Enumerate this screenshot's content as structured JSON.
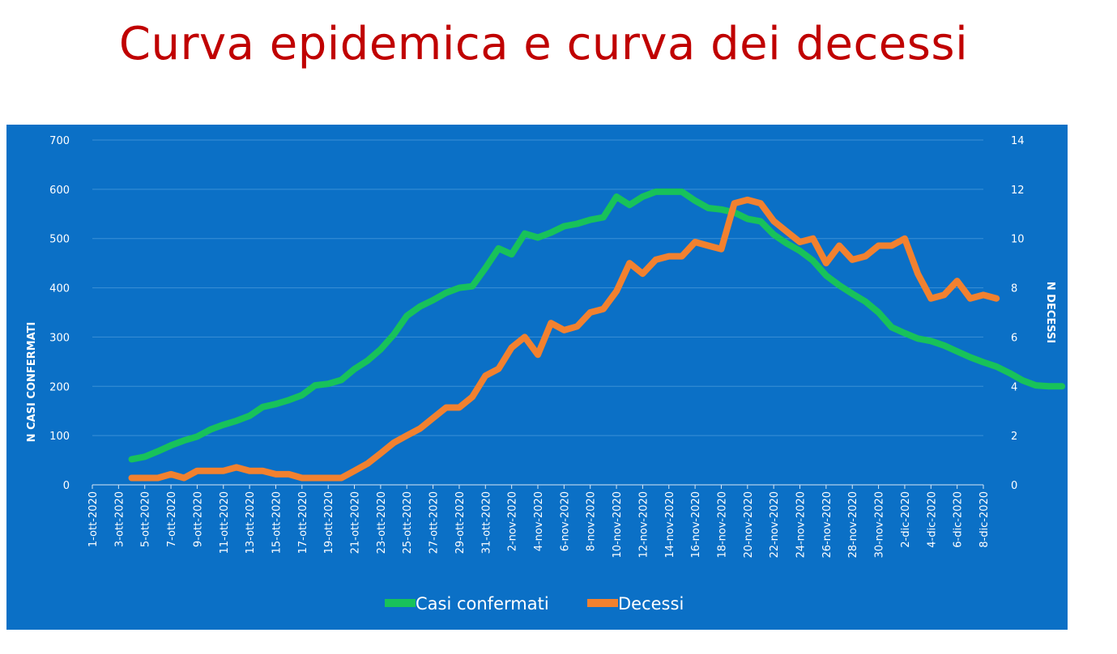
{
  "slide": {
    "title": "Curva epidemica e curva dei decessi"
  },
  "colors": {
    "title": "#c00000",
    "panel": "#0b70c6",
    "cases": "#18c25a",
    "deaths": "#f2812f",
    "text": "#ffffff",
    "grid": "#3b8fd6"
  },
  "chart_data": {
    "type": "line",
    "title": "",
    "ylabel": "N CASI CONFERMATI",
    "y2label": "N DECESSI",
    "ylim": [
      0,
      700
    ],
    "y2lim": [
      0,
      14
    ],
    "yticks": [
      0,
      100,
      200,
      300,
      400,
      500,
      600,
      700
    ],
    "y2ticks": [
      0,
      2,
      4,
      6,
      8,
      10,
      12,
      14
    ],
    "x_tick_labels": [
      "1-ott-2020",
      "3-ott-2020",
      "5-ott-2020",
      "7-ott-2020",
      "9-ott-2020",
      "11-ott-2020",
      "13-ott-2020",
      "15-ott-2020",
      "17-ott-2020",
      "19-ott-2020",
      "21-ott-2020",
      "23-ott-2020",
      "25-ott-2020",
      "27-ott-2020",
      "29-ott-2020",
      "31-ott-2020",
      "2-nov-2020",
      "4-nov-2020",
      "6-nov-2020",
      "8-nov-2020",
      "10-nov-2020",
      "12-nov-2020",
      "14-nov-2020",
      "16-nov-2020",
      "18-nov-2020",
      "20-nov-2020",
      "22-nov-2020",
      "24-nov-2020",
      "26-nov-2020",
      "28-nov-2020",
      "30-nov-2020",
      "2-dic-2020",
      "4-dic-2020",
      "6-dic-2020",
      "8-dic-2020"
    ],
    "grid": true,
    "legend_position": "bottom",
    "series": [
      {
        "name": "Casi confermati",
        "axis": "left",
        "start": "4-ott-2020",
        "values": [
          52,
          57,
          68,
          80,
          90,
          98,
          112,
          122,
          130,
          140,
          158,
          164,
          172,
          182,
          202,
          205,
          213,
          235,
          252,
          275,
          305,
          343,
          362,
          375,
          390,
          400,
          403,
          440,
          480,
          468,
          510,
          502,
          512,
          525,
          530,
          538,
          543,
          585,
          568,
          585,
          595,
          595,
          595,
          577,
          562,
          559,
          553,
          540,
          535,
          508,
          490,
          475,
          455,
          425,
          405,
          388,
          372,
          350,
          320,
          308,
          297,
          292,
          283,
          271,
          259,
          249,
          240,
          227,
          212,
          202,
          200,
          200
        ]
      },
      {
        "name": "Decessi",
        "axis": "right",
        "start": "4-ott-2020",
        "values": [
          0.28,
          0.28,
          0.28,
          0.43,
          0.28,
          0.57,
          0.57,
          0.57,
          0.71,
          0.57,
          0.57,
          0.43,
          0.43,
          0.28,
          0.28,
          0.28,
          0.28,
          0.57,
          0.86,
          1.28,
          1.71,
          2.0,
          2.28,
          2.71,
          3.14,
          3.14,
          3.57,
          4.43,
          4.71,
          5.57,
          6.0,
          5.28,
          6.57,
          6.28,
          6.43,
          7.0,
          7.14,
          7.86,
          9.0,
          8.57,
          9.14,
          9.28,
          9.28,
          9.86,
          9.71,
          9.57,
          11.43,
          11.57,
          11.43,
          10.71,
          10.28,
          9.86,
          10.0,
          9.0,
          9.71,
          9.14,
          9.28,
          9.71,
          9.71,
          10.0,
          8.57,
          7.57,
          7.71,
          8.28,
          7.57,
          7.71,
          7.57
        ]
      }
    ]
  }
}
